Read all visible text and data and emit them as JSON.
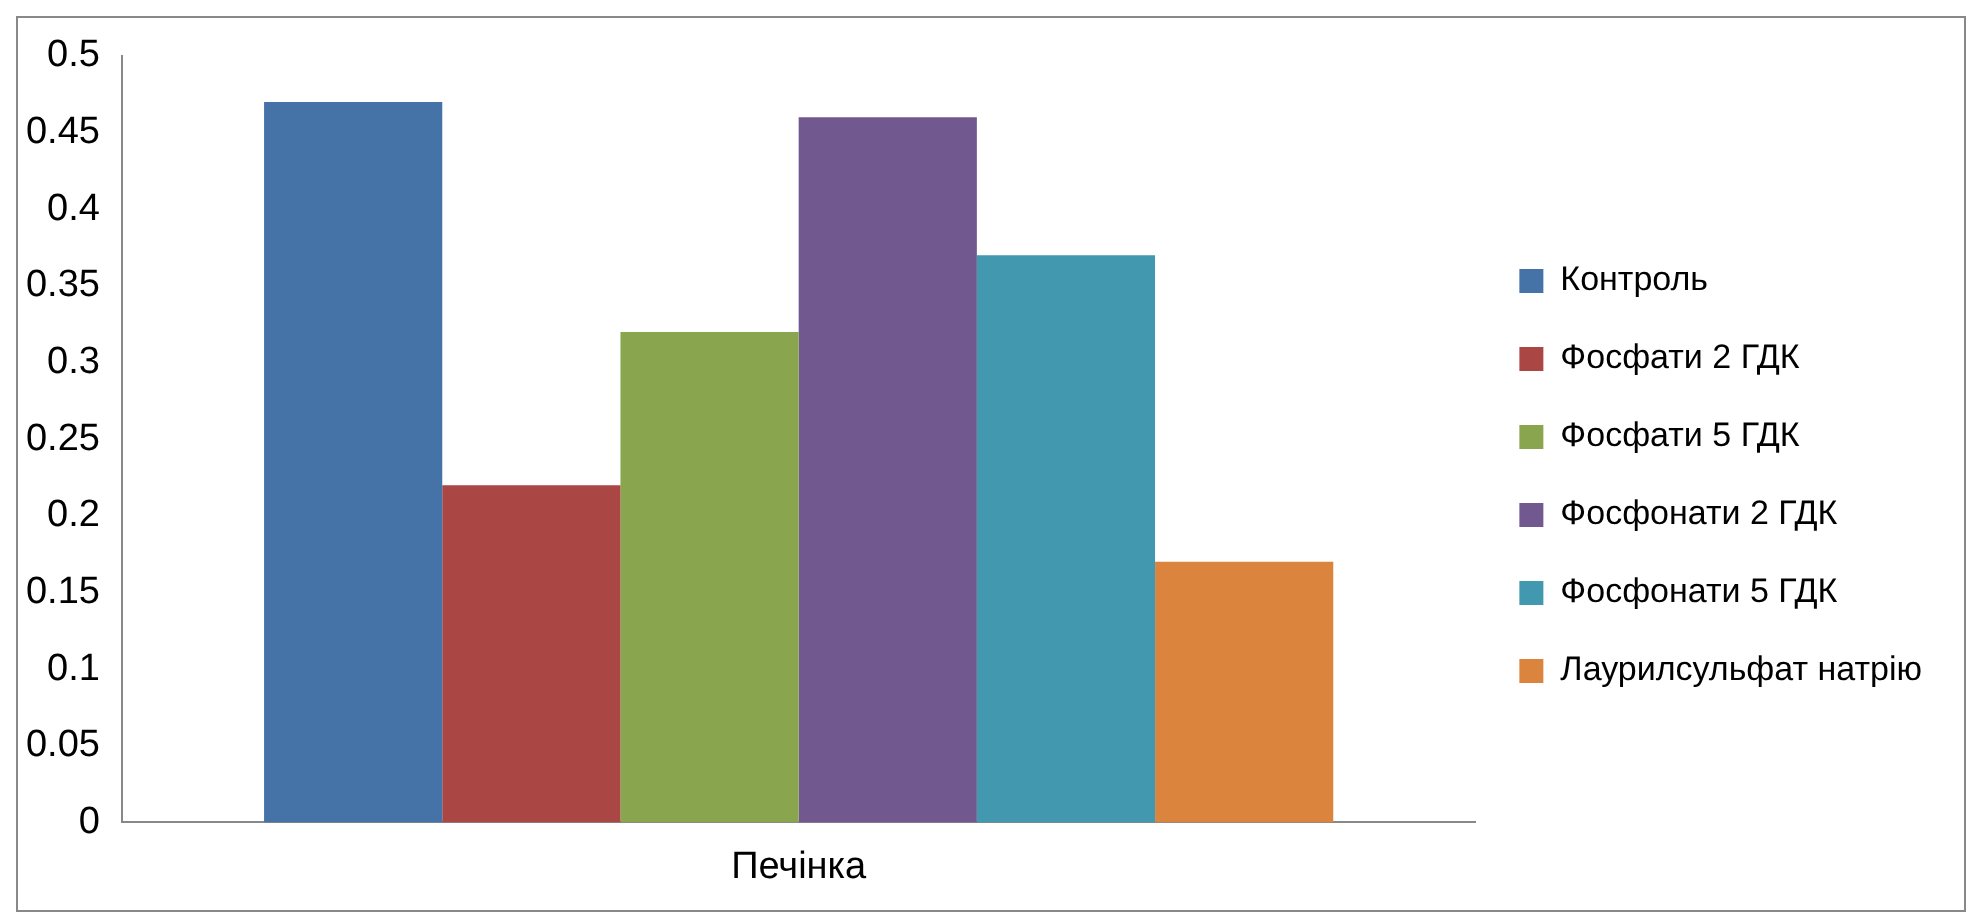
{
  "chart_data": {
    "type": "bar",
    "categories": [
      "Печінка"
    ],
    "series": [
      {
        "name": "Контроль",
        "color": "#4572a7",
        "values": [
          0.47
        ]
      },
      {
        "name": "Фосфати 2 ГДК",
        "color": "#aa4643",
        "values": [
          0.22
        ]
      },
      {
        "name": "Фосфати 5 ГДК",
        "color": "#89a54e",
        "values": [
          0.32
        ]
      },
      {
        "name": "Фосфонати 2 ГДК",
        "color": "#71588f",
        "values": [
          0.46
        ]
      },
      {
        "name": "Фосфонати 5 ГДК",
        "color": "#4198af",
        "values": [
          0.37
        ]
      },
      {
        "name": "Лаурилсульфат натрію",
        "color": "#db843d",
        "values": [
          0.17
        ]
      }
    ],
    "ylim": [
      0,
      0.5
    ],
    "yticks": [
      0,
      0.05,
      0.1,
      0.15,
      0.2,
      0.25,
      0.3,
      0.35,
      0.4,
      0.45,
      0.5
    ],
    "grid": false,
    "legend": "right"
  }
}
